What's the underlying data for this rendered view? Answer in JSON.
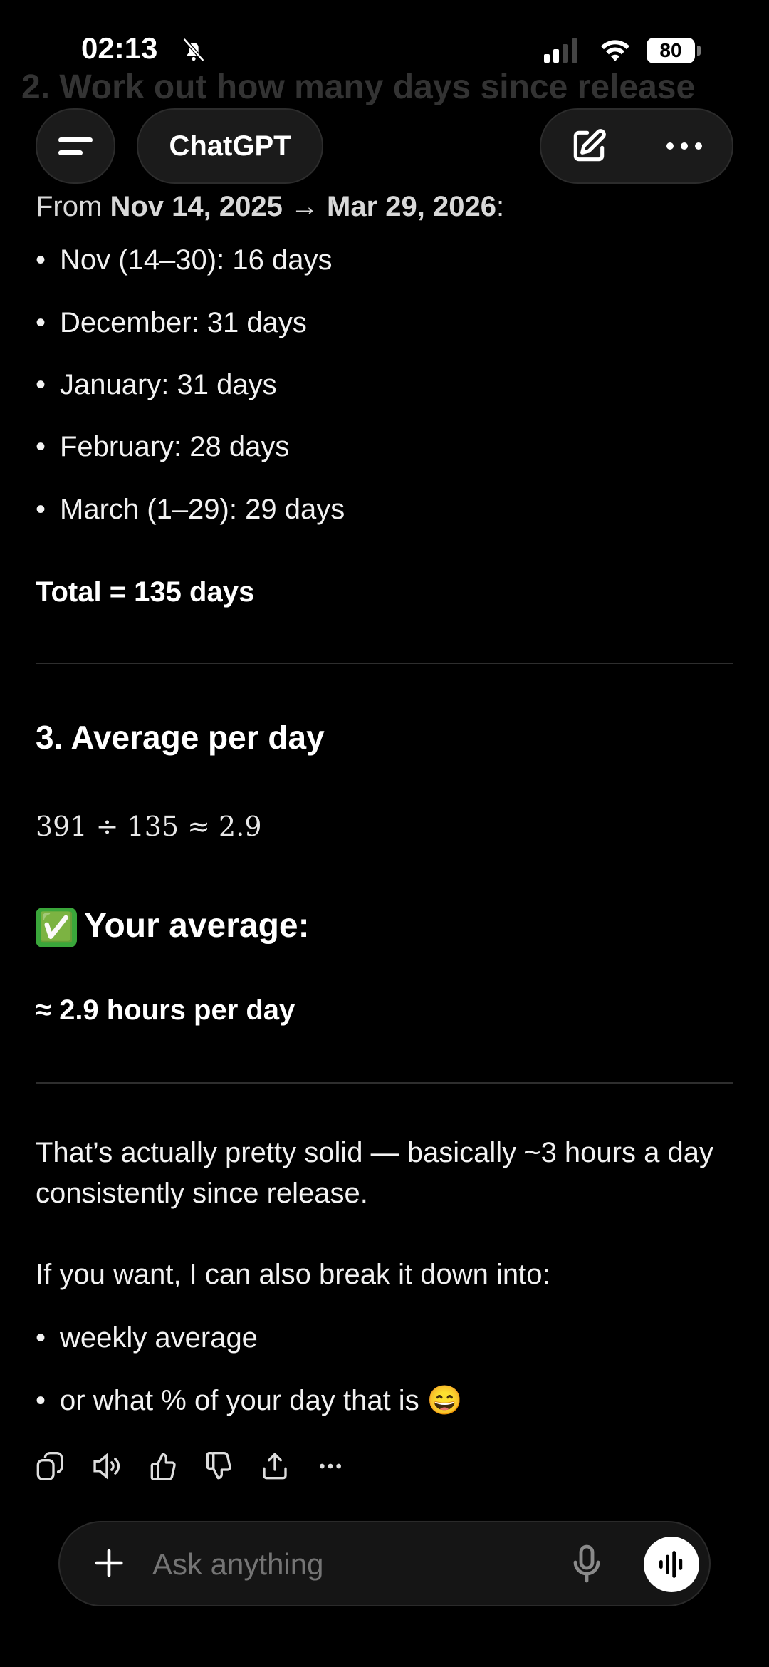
{
  "status_bar": {
    "time": "02:13",
    "battery": "80",
    "silent_icon": "bell-slash-icon",
    "signal_icon": "cellular-signal-icon",
    "wifi_icon": "wifi-icon"
  },
  "header": {
    "title": "ChatGPT",
    "menu_icon": "menu-icon",
    "new_chat_icon": "compose-icon",
    "more_icon": "more-icon"
  },
  "message": {
    "faded_heading": "2. Work out how many days since release",
    "from_prefix": "From ",
    "from_range": "Nov 14, 2025 → Mar 29, 2026",
    "from_suffix": ":",
    "day_items": [
      "Nov (14–30): 16 days",
      "December: 31 days",
      "January: 31 days",
      "February: 28 days",
      "March (1–29): 29 days"
    ],
    "total": "Total = 135 days",
    "section3_heading": "3. Average per day",
    "formula": "391 ÷ 135 ≈ 2.9",
    "average_emoji": "✅",
    "average_heading": "Your average:",
    "average_value": "≈ 2.9 hours per day",
    "paragraph": "That’s actually pretty solid — basically ~3 hours a day consistently since release.",
    "offer": "If you want, I can also break it down into:",
    "offer_items": [
      "weekly average",
      "or what % of your day that is 😄"
    ]
  },
  "actions": [
    "copy-icon",
    "read-aloud-icon",
    "thumbs-up-icon",
    "thumbs-down-icon",
    "share-icon",
    "more-icon"
  ],
  "composer": {
    "placeholder": "Ask anything",
    "plus_icon": "plus-icon",
    "mic_icon": "microphone-icon",
    "voice_icon": "voice-mode-icon"
  }
}
